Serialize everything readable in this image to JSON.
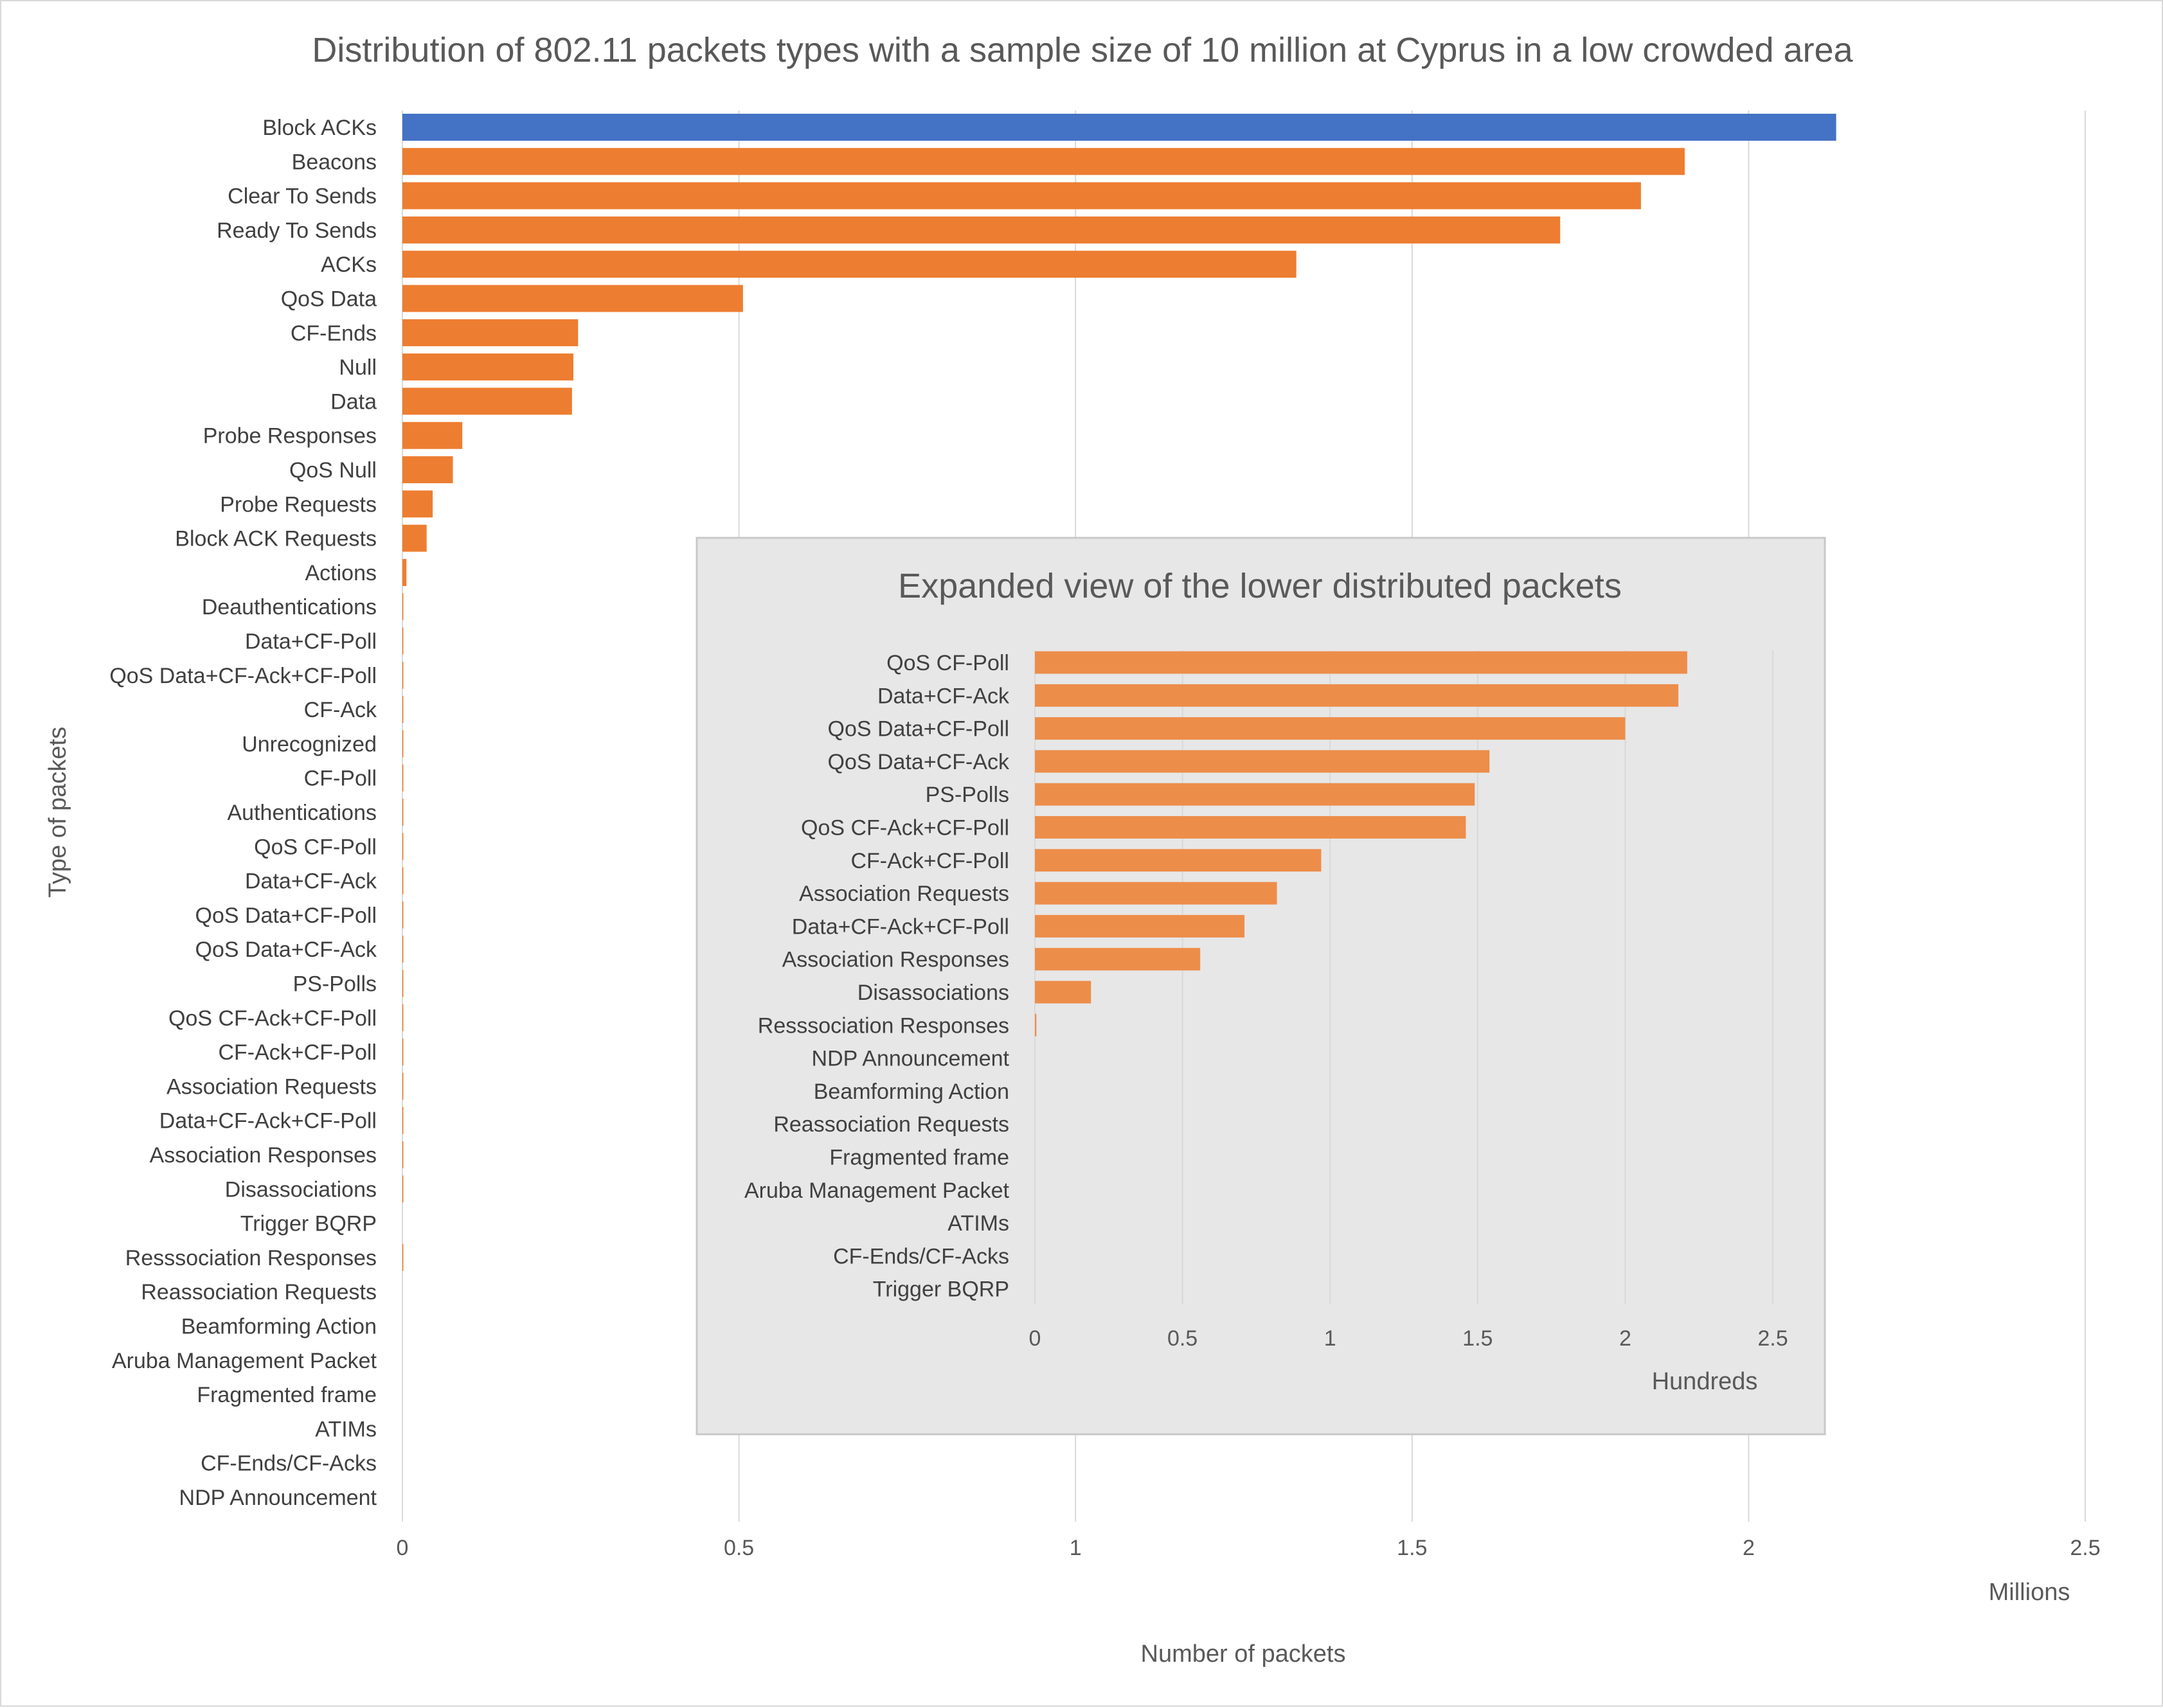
{
  "chart_data": [
    {
      "type": "bar",
      "orientation": "horizontal",
      "title": "Distribution of 802.11 packets types with a sample size of 10 million at Cyprus in a low crowded area",
      "xlabel": "Number of packets",
      "ylabel": "Type of packets",
      "x_units": "Millions",
      "xlim": [
        0,
        2.5
      ],
      "xticks": [
        "0",
        "0.5",
        "1",
        "1.5",
        "2",
        "2.5"
      ],
      "grid": true,
      "categories": [
        "Block ACKs",
        "Beacons",
        "Clear To Sends",
        "Ready To Sends",
        "ACKs",
        "QoS Data",
        "CF-Ends",
        "Null",
        "Data",
        "Probe Responses",
        "QoS Null",
        "Probe Requests",
        "Block ACK Requests",
        "Actions",
        "Deauthentications",
        "Data+CF-Poll",
        "QoS Data+CF-Ack+CF-Poll",
        "CF-Ack",
        "Unrecognized",
        "CF-Poll",
        "Authentications",
        "QoS CF-Poll",
        "Data+CF-Ack",
        "QoS Data+CF-Poll",
        "QoS Data+CF-Ack",
        "PS-Polls",
        "QoS CF-Ack+CF-Poll",
        "CF-Ack+CF-Poll",
        "Association Requests",
        "Data+CF-Ack+CF-Poll",
        "Association Responses",
        "Disassociations",
        "Trigger BQRP",
        "Resssociation Responses",
        "Reassociation Requests",
        "Beamforming Action",
        "Aruba Management Packet",
        "Fragmented frame",
        "ATIMs",
        "CF-Ends/CF-Acks",
        "NDP Announcement"
      ],
      "values": [
        2.13,
        1.905,
        1.84,
        1.72,
        1.328,
        0.506,
        0.261,
        0.254,
        0.252,
        0.089,
        0.075,
        0.045,
        0.036,
        0.006,
        0.0008,
        0.0006,
        0.0005,
        0.0005,
        0.0004,
        0.0004,
        0.0003,
        0.000221,
        0.000218,
        0.0002,
        0.000154,
        0.000149,
        0.000146,
        9.7e-05,
        8.2e-05,
        7.1e-05,
        5.6e-05,
        1.9e-05,
        0.0,
        5e-07,
        0.0,
        0.0,
        0.0,
        0.0,
        0.0,
        0.0,
        0.0
      ],
      "colors": {
        "highlight": "#4472c4",
        "default": "#ed7d31"
      }
    },
    {
      "type": "bar",
      "orientation": "horizontal",
      "title": "Expanded view of the lower distributed packets",
      "x_units": "Hundreds",
      "xlim": [
        0,
        2.5
      ],
      "xticks": [
        "0",
        "0.5",
        "1",
        "1.5",
        "2",
        "2.5"
      ],
      "grid": true,
      "categories": [
        "QoS CF-Poll",
        "Data+CF-Ack",
        "QoS Data+CF-Poll",
        "QoS Data+CF-Ack",
        "PS-Polls",
        "QoS CF-Ack+CF-Poll",
        "CF-Ack+CF-Poll",
        "Association Requests",
        "Data+CF-Ack+CF-Poll",
        "Association Responses",
        "Disassociations",
        "Resssociation Responses",
        "NDP Announcement",
        "Beamforming Action",
        "Reassociation Requests",
        "Fragmented frame",
        "Aruba Management Packet",
        "ATIMs",
        "CF-Ends/CF-Acks",
        "Trigger BQRP"
      ],
      "values": [
        2.21,
        2.18,
        2.0,
        1.54,
        1.49,
        1.46,
        0.97,
        0.82,
        0.71,
        0.56,
        0.19,
        0.005,
        0,
        0,
        0,
        0,
        0,
        0,
        0,
        0
      ],
      "colors": {
        "default": "#ed8d4a",
        "background": "#e7e7e7",
        "border": "#c8c8c8"
      }
    }
  ]
}
